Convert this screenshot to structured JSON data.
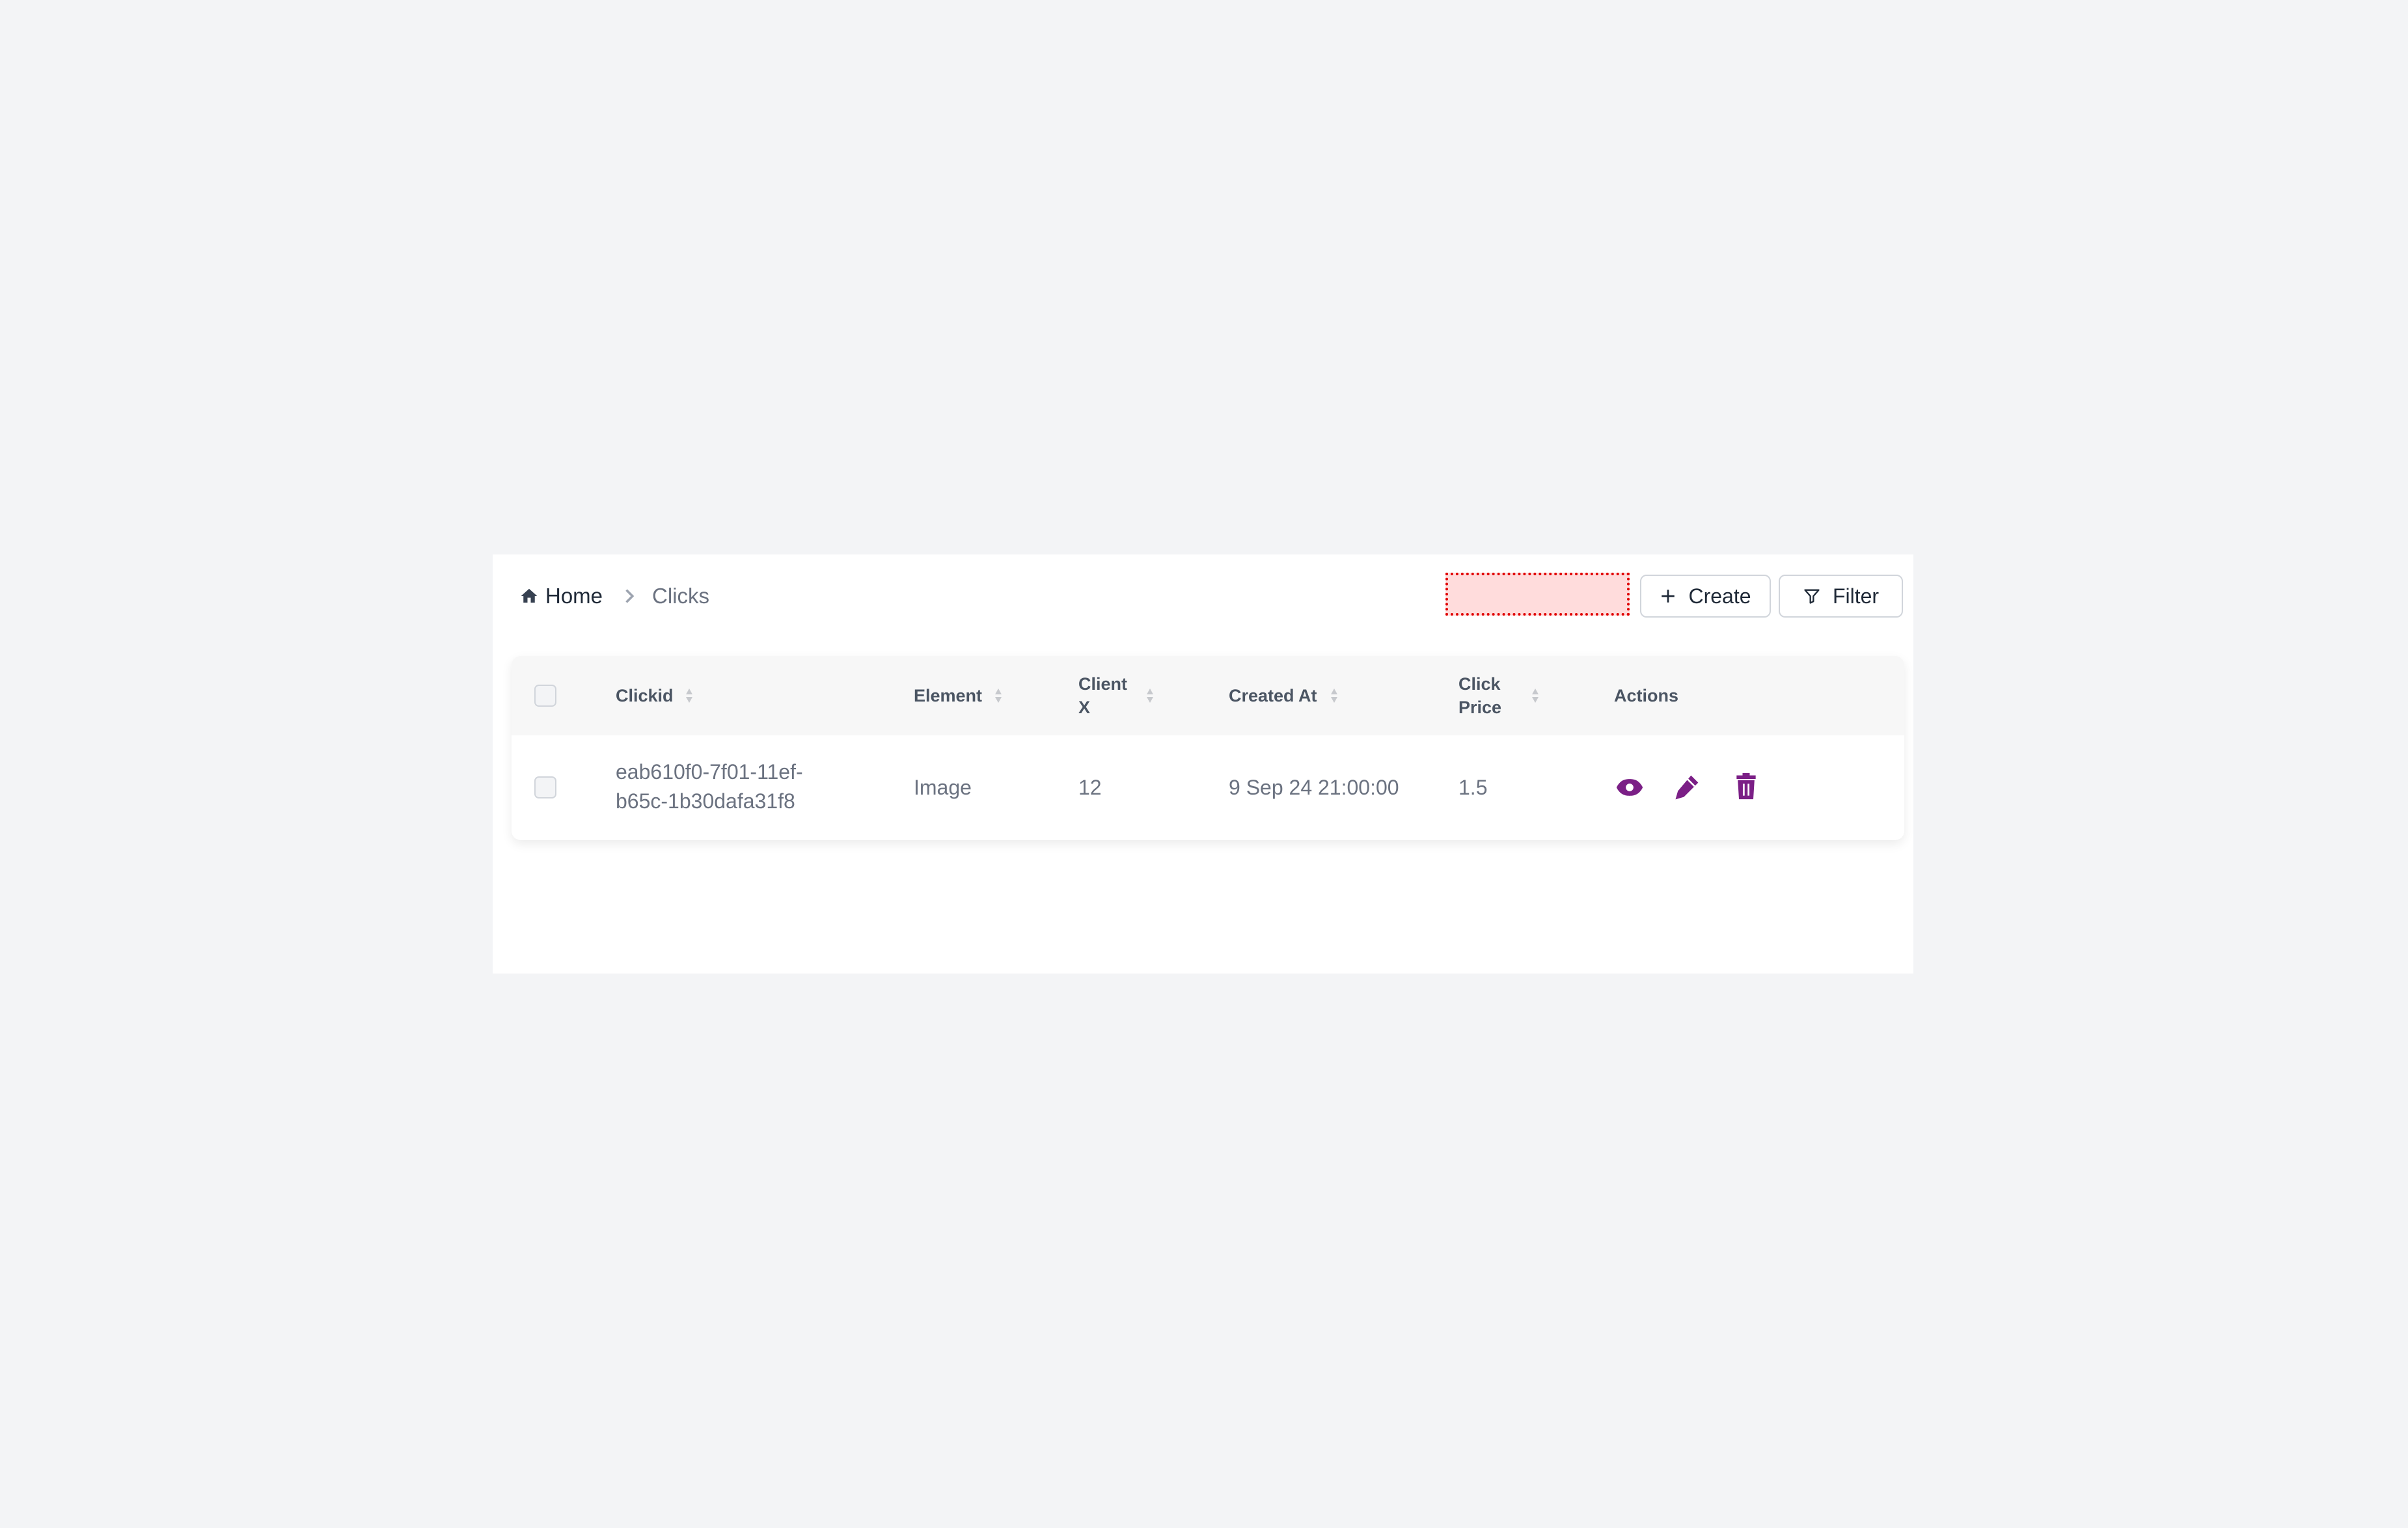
{
  "breadcrumb": {
    "home": "Home",
    "current": "Clicks"
  },
  "toolbar": {
    "create_label": "Create",
    "filter_label": "Filter"
  },
  "table": {
    "columns": [
      "Clickid",
      "Element",
      "Client X",
      "Created At",
      "Click Price",
      "Actions"
    ],
    "column_lines": {
      "client_x": [
        "Client",
        "X"
      ],
      "click_price": [
        "Click",
        "Price"
      ]
    },
    "rows": [
      {
        "clickid_line1": "eab610f0-7f01-11ef-",
        "clickid_line2": "b65c-1b30dafa31f8",
        "element": "Image",
        "client_x": "12",
        "created_at": "9 Sep 24 21:00:00",
        "click_price": "1.5"
      }
    ]
  },
  "colors": {
    "accent": "#7b1f86",
    "text": "#6b7280",
    "header_text": "#4b5563"
  }
}
